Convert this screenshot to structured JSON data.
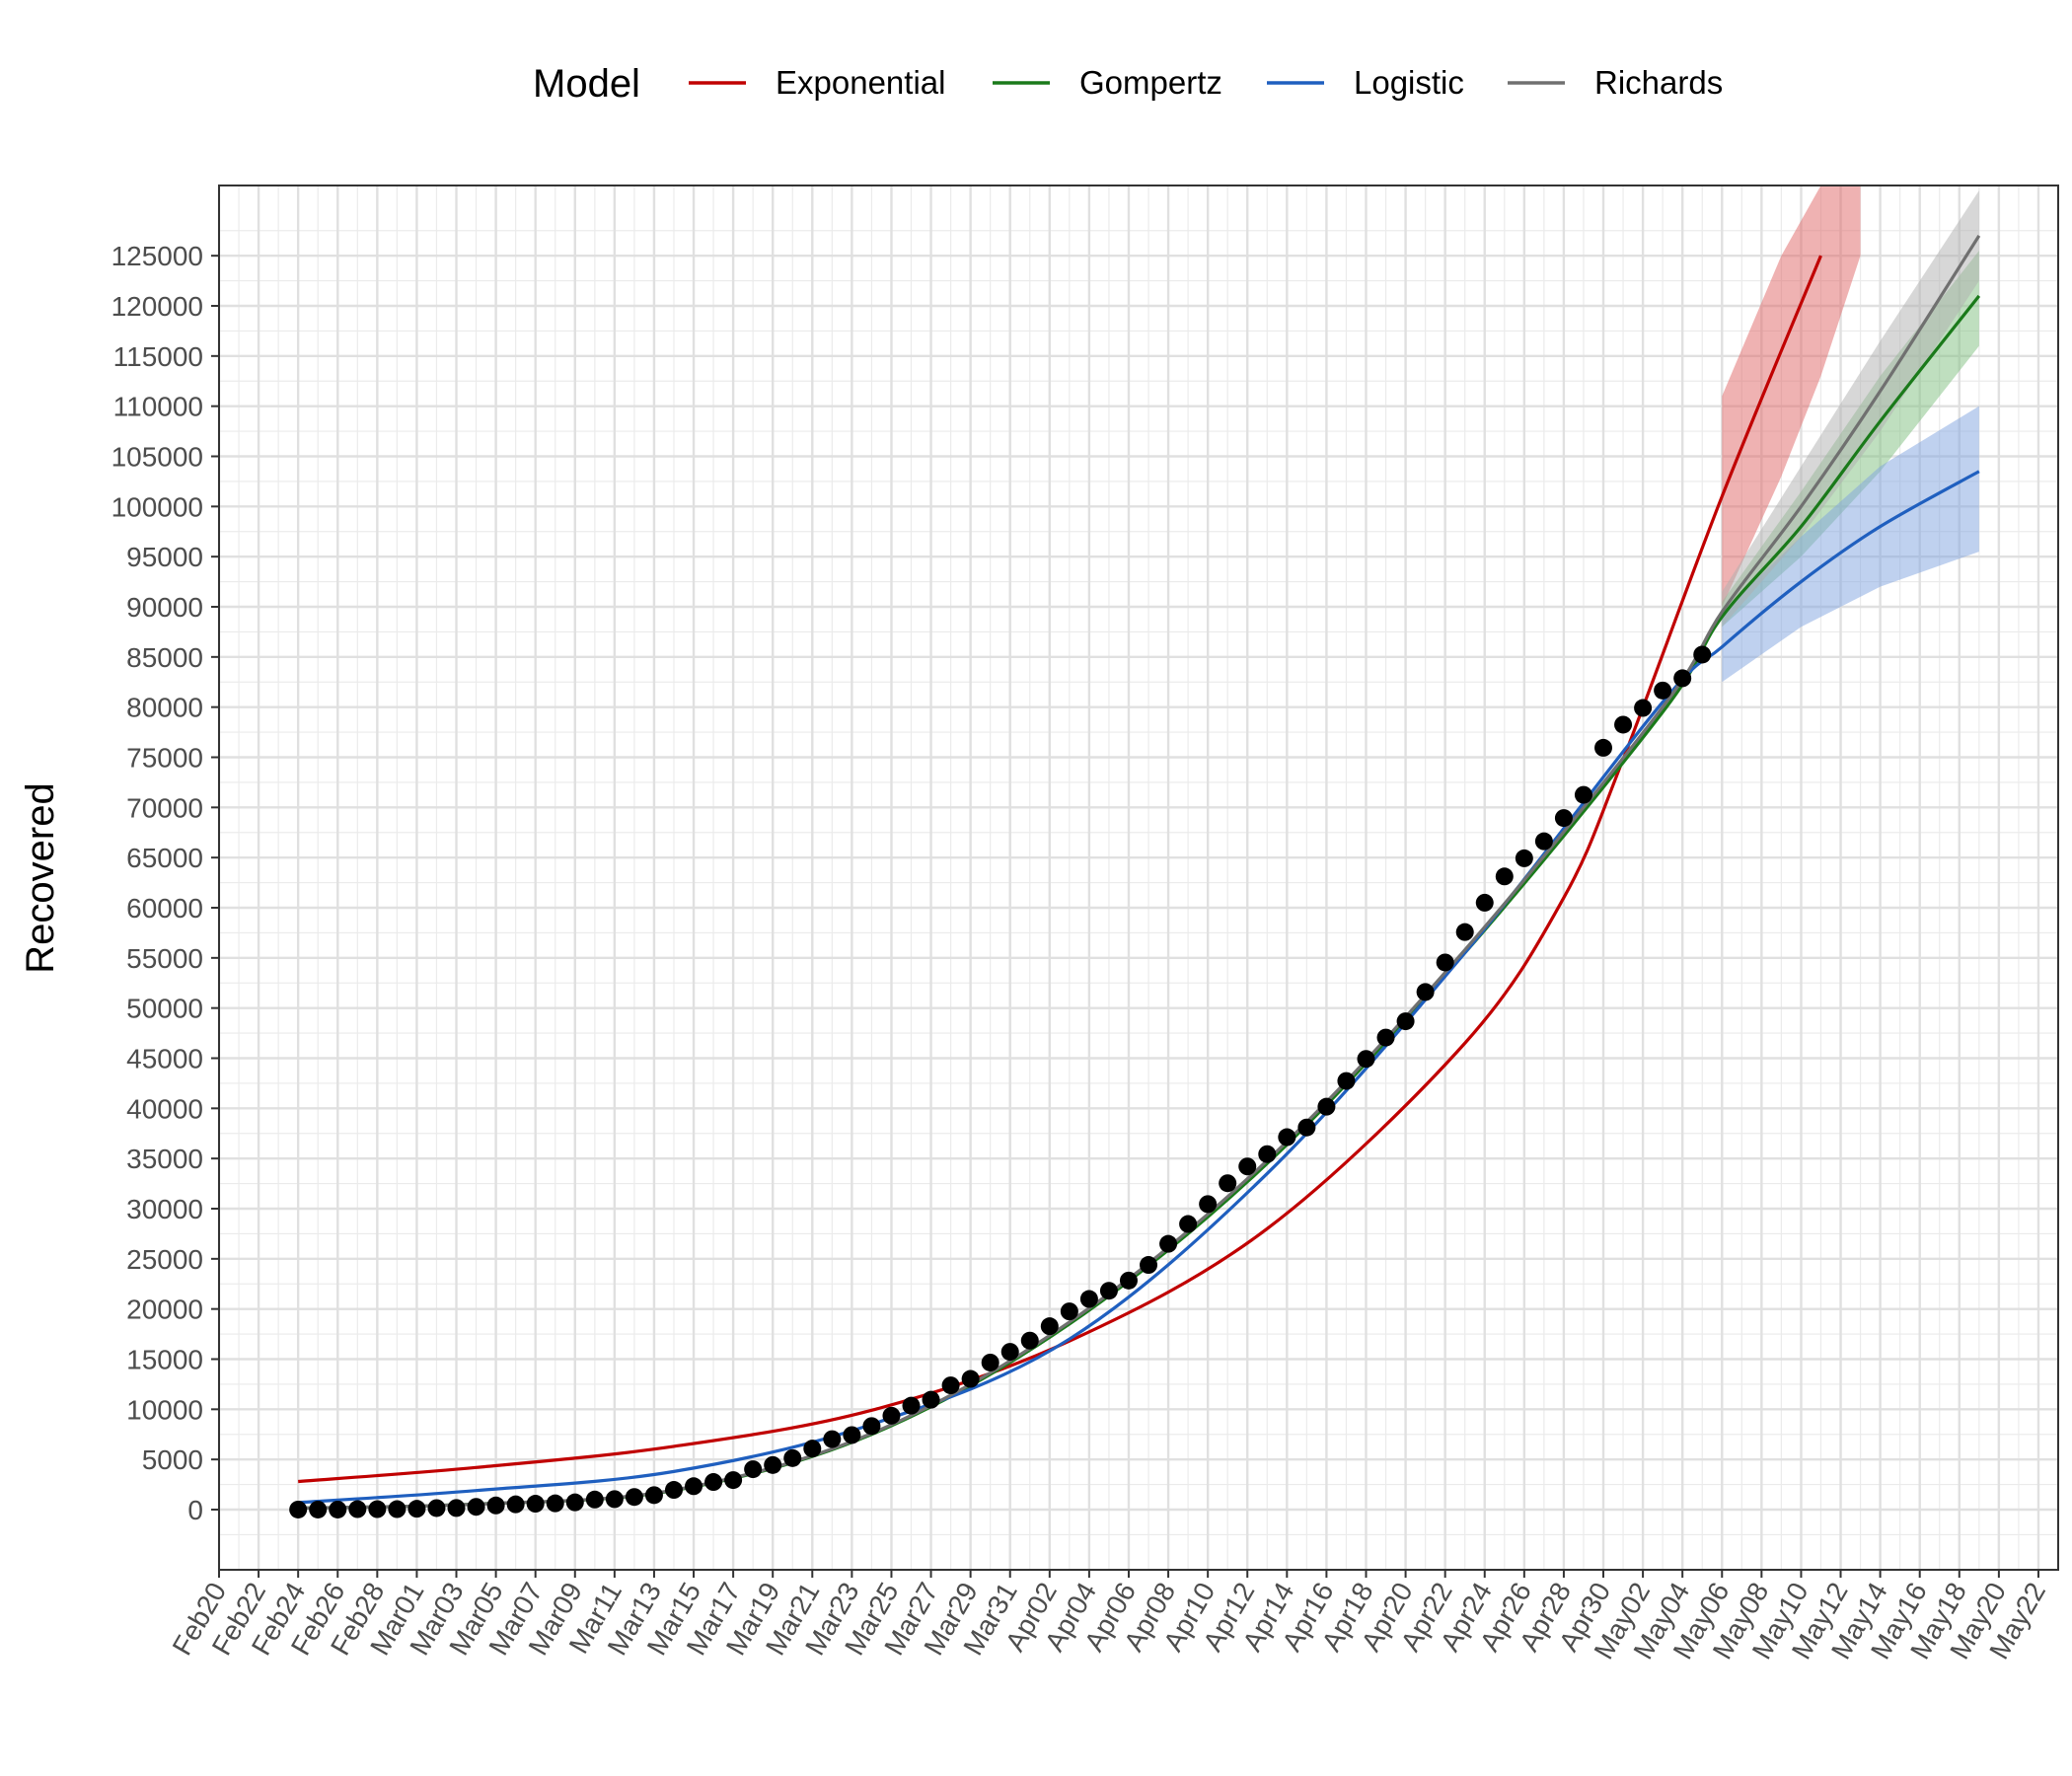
{
  "chart_data": {
    "type": "line",
    "xlabel": "",
    "ylabel": "Recovered",
    "legend": {
      "title": "Model",
      "position": "top"
    },
    "grid": true,
    "x_range": [
      "2020-02-20",
      "2020-05-23"
    ],
    "ylim": [
      -6000,
      132000
    ],
    "x_ticks": [
      "Feb20",
      "Feb22",
      "Feb24",
      "Feb26",
      "Feb28",
      "Mar01",
      "Mar03",
      "Mar05",
      "Mar07",
      "Mar09",
      "Mar11",
      "Mar13",
      "Mar15",
      "Mar17",
      "Mar19",
      "Mar21",
      "Mar23",
      "Mar25",
      "Mar27",
      "Mar29",
      "Mar31",
      "Apr02",
      "Apr04",
      "Apr06",
      "Apr08",
      "Apr10",
      "Apr12",
      "Apr14",
      "Apr16",
      "Apr18",
      "Apr20",
      "Apr22",
      "Apr24",
      "Apr26",
      "Apr28",
      "Apr30",
      "May02",
      "May04",
      "May06",
      "May08",
      "May10",
      "May12",
      "May14",
      "May16",
      "May18",
      "May20",
      "May22"
    ],
    "y_ticks": [
      0,
      5000,
      10000,
      15000,
      20000,
      25000,
      30000,
      35000,
      40000,
      45000,
      50000,
      55000,
      60000,
      65000,
      70000,
      75000,
      80000,
      85000,
      90000,
      95000,
      100000,
      105000,
      110000,
      115000,
      120000,
      125000
    ],
    "observed": {
      "x": [
        "2020-02-24",
        "2020-02-25",
        "2020-02-26",
        "2020-02-27",
        "2020-02-28",
        "2020-02-29",
        "2020-03-01",
        "2020-03-02",
        "2020-03-03",
        "2020-03-04",
        "2020-03-05",
        "2020-03-06",
        "2020-03-07",
        "2020-03-08",
        "2020-03-09",
        "2020-03-10",
        "2020-03-11",
        "2020-03-12",
        "2020-03-13",
        "2020-03-14",
        "2020-03-15",
        "2020-03-16",
        "2020-03-17",
        "2020-03-18",
        "2020-03-19",
        "2020-03-20",
        "2020-03-21",
        "2020-03-22",
        "2020-03-23",
        "2020-03-24",
        "2020-03-25",
        "2020-03-26",
        "2020-03-27",
        "2020-03-28",
        "2020-03-29",
        "2020-03-30",
        "2020-03-31",
        "2020-04-01",
        "2020-04-02",
        "2020-04-03",
        "2020-04-04",
        "2020-04-05",
        "2020-04-06",
        "2020-04-07",
        "2020-04-08",
        "2020-04-09",
        "2020-04-10",
        "2020-04-11",
        "2020-04-12",
        "2020-04-13",
        "2020-04-14",
        "2020-04-15",
        "2020-04-16",
        "2020-04-17",
        "2020-04-18",
        "2020-04-19",
        "2020-04-20",
        "2020-04-21",
        "2020-04-22",
        "2020-04-23",
        "2020-04-24",
        "2020-04-25",
        "2020-04-26",
        "2020-04-27",
        "2020-04-28",
        "2020-04-29",
        "2020-04-30",
        "2020-05-01",
        "2020-05-02",
        "2020-05-03",
        "2020-05-04",
        "2020-05-05"
      ],
      "y": [
        1,
        2,
        3,
        45,
        46,
        46,
        83,
        149,
        160,
        276,
        414,
        523,
        589,
        622,
        724,
        1004,
        1045,
        1258,
        1439,
        1966,
        2335,
        2749,
        2941,
        4025,
        4440,
        5129,
        6085,
        7024,
        7432,
        8326,
        9362,
        10361,
        10950,
        12384,
        13030,
        14656,
        15729,
        16847,
        18278,
        19758,
        20996,
        21815,
        22837,
        24392,
        26491,
        28470,
        30455,
        32534,
        34211,
        35435,
        37130,
        38092,
        40164,
        42727,
        44927,
        47055,
        48677,
        51600,
        54543,
        57576,
        60498,
        63120,
        64928,
        66624,
        68941,
        71252,
        75945,
        78249,
        79914,
        81654,
        82879,
        85231
      ]
    },
    "series": [
      {
        "name": "Exponential",
        "color": "#c00000",
        "band_color": "#e06666",
        "x": [
          "2020-02-24",
          "2020-03-04",
          "2020-03-14",
          "2020-03-24",
          "2020-04-03",
          "2020-04-13",
          "2020-04-23",
          "2020-04-28",
          "2020-05-01",
          "2020-05-06",
          "2020-05-11"
        ],
        "y": [
          2800,
          4200,
          6300,
          9900,
          16800,
          28000,
          46500,
          61000,
          74800,
          101000,
          125000
        ],
        "band_x": [
          "2020-05-06",
          "2020-05-09",
          "2020-05-11",
          "2020-05-13"
        ],
        "band_lower": [
          90000,
          103000,
          113000,
          125000
        ],
        "band_upper": [
          111000,
          125000,
          132000,
          132000
        ]
      },
      {
        "name": "Gompertz",
        "color": "#1a7a1a",
        "band_color": "#7fbf7f",
        "x": [
          "2020-02-24",
          "2020-03-04",
          "2020-03-14",
          "2020-03-24",
          "2020-04-03",
          "2020-04-13",
          "2020-04-23",
          "2020-05-03",
          "2020-05-06",
          "2020-05-10",
          "2020-05-14",
          "2020-05-19"
        ],
        "y": [
          150,
          550,
          1900,
          7500,
          18500,
          34500,
          55500,
          79500,
          89000,
          98000,
          108500,
          121000
        ],
        "band_x": [
          "2020-05-06",
          "2020-05-10",
          "2020-05-14",
          "2020-05-19"
        ],
        "band_lower": [
          88000,
          95000,
          103500,
          116000
        ],
        "band_upper": [
          90500,
          101500,
          113000,
          125500
        ]
      },
      {
        "name": "Logistic",
        "color": "#1f5fbf",
        "band_color": "#7fa3e0",
        "x": [
          "2020-02-24",
          "2020-03-04",
          "2020-03-14",
          "2020-03-24",
          "2020-04-03",
          "2020-04-13",
          "2020-04-23",
          "2020-05-03",
          "2020-05-06",
          "2020-05-10",
          "2020-05-14",
          "2020-05-19"
        ],
        "y": [
          700,
          1900,
          3800,
          8500,
          17000,
          33500,
          55500,
          80500,
          86000,
          92500,
          98000,
          103500
        ],
        "band_x": [
          "2020-05-06",
          "2020-05-10",
          "2020-05-14",
          "2020-05-19"
        ],
        "band_lower": [
          82500,
          88000,
          92000,
          95500
        ],
        "band_upper": [
          89500,
          97000,
          104000,
          110000
        ]
      },
      {
        "name": "Richards",
        "color": "#707070",
        "band_color": "#b0b0b0",
        "x": [
          "2020-02-24",
          "2020-03-04",
          "2020-03-14",
          "2020-03-24",
          "2020-04-03",
          "2020-04-13",
          "2020-04-23",
          "2020-05-03",
          "2020-05-06",
          "2020-05-10",
          "2020-05-14",
          "2020-05-19"
        ],
        "y": [
          150,
          550,
          1950,
          7600,
          18700,
          34800,
          55800,
          80000,
          89500,
          100000,
          111500,
          127000
        ],
        "band_x": [
          "2020-05-06",
          "2020-05-10",
          "2020-05-14",
          "2020-05-19"
        ],
        "band_lower": [
          88000,
          97000,
          107500,
          122500
        ],
        "band_upper": [
          91500,
          104000,
          116500,
          131500
        ]
      }
    ]
  }
}
